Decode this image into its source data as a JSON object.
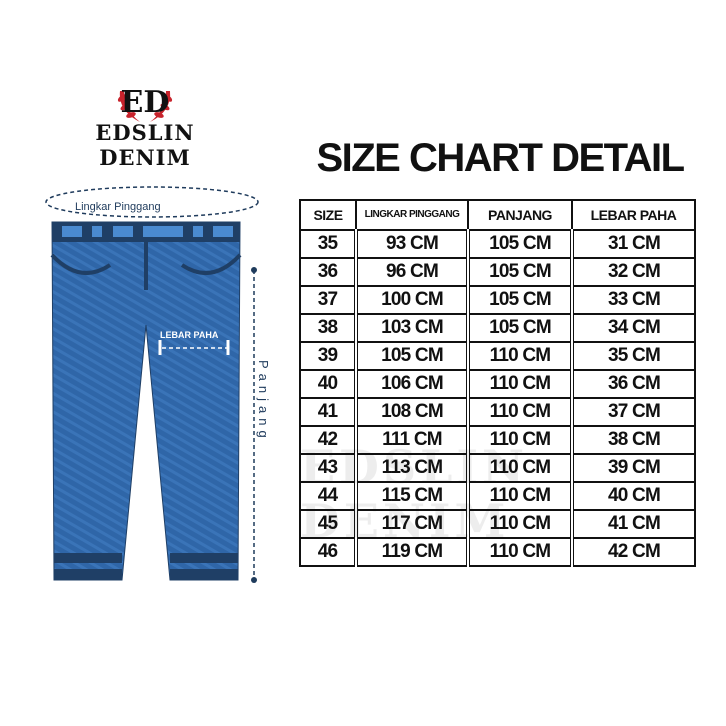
{
  "brand": {
    "name": "EDSLIN DENIM",
    "logo_monogram": "ED",
    "colors": {
      "laurel": "#c8232c",
      "text": "#111111"
    }
  },
  "title": "SIZE CHART DETAIL",
  "diagram": {
    "waist_label": "Lingkar Pinggang",
    "thigh_label": "LEBAR PAHA",
    "length_label": "Panjang",
    "denim_color": "#2f66a8",
    "denim_dark": "#1f3f66"
  },
  "table": {
    "headers": [
      "SIZE",
      "LINGKAR PINGGANG",
      "PANJANG",
      "LEBAR PAHA"
    ],
    "rows": [
      [
        "35",
        "93 CM",
        "105 CM",
        "31 CM"
      ],
      [
        "36",
        "96 CM",
        "105 CM",
        "32 CM"
      ],
      [
        "37",
        "100 CM",
        "105 CM",
        "33 CM"
      ],
      [
        "38",
        "103 CM",
        "105 CM",
        "34 CM"
      ],
      [
        "39",
        "105 CM",
        "110 CM",
        "35 CM"
      ],
      [
        "40",
        "106 CM",
        "110 CM",
        "36 CM"
      ],
      [
        "41",
        "108 CM",
        "110 CM",
        "37 CM"
      ],
      [
        "42",
        "111 CM",
        "110 CM",
        "38 CM"
      ],
      [
        "43",
        "113 CM",
        "110 CM",
        "39 CM"
      ],
      [
        "44",
        "115 CM",
        "110 CM",
        "40 CM"
      ],
      [
        "45",
        "117 CM",
        "110 CM",
        "41 CM"
      ],
      [
        "46",
        "119 CM",
        "110 CM",
        "42 CM"
      ]
    ]
  }
}
